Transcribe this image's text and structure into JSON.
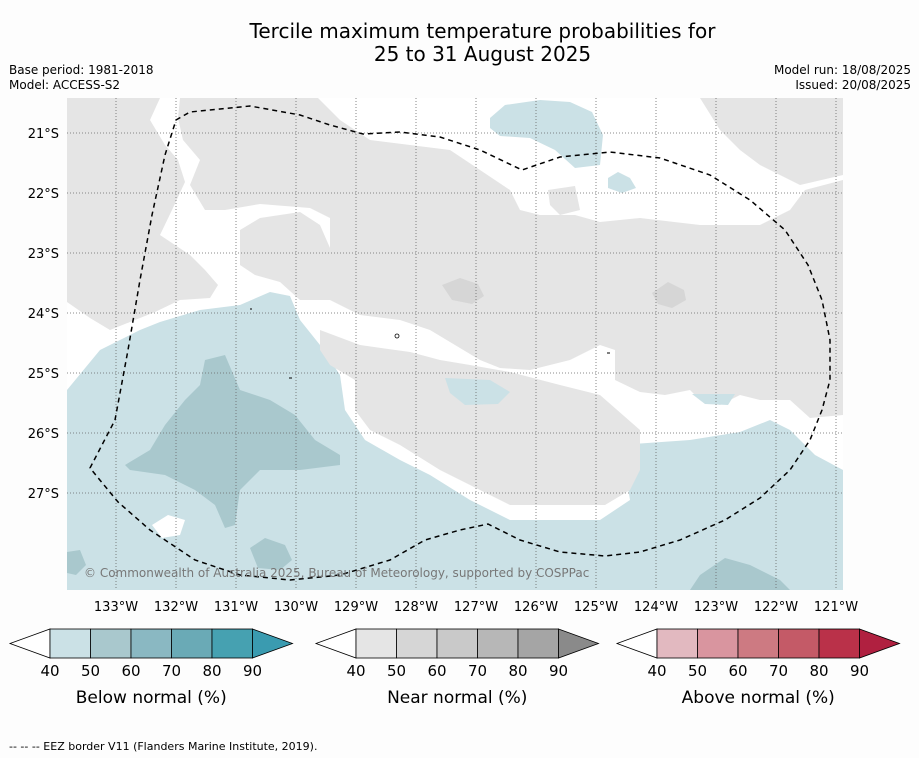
{
  "title_line1": "Tercile maximum temperature probabilities for",
  "title_line2": "25 to 31 August 2025",
  "meta": {
    "base_period": "Base period: 1981-2018",
    "model": "Model: ACCESS-S2",
    "model_run": "Model run: 18/08/2025",
    "issued": "Issued: 20/08/2025"
  },
  "copyright": "© Commonwealth of Australia 2025, Bureau of Meteorology, supported by COSPPac",
  "lat_labels": [
    "21°S",
    "22°S",
    "23°S",
    "24°S",
    "25°S",
    "26°S",
    "27°S"
  ],
  "lon_labels": [
    "133°W",
    "132°W",
    "131°W",
    "130°W",
    "129°W",
    "128°W",
    "127°W",
    "126°W",
    "125°W",
    "124°W",
    "123°W",
    "122°W",
    "121°W"
  ],
  "colorbars": [
    {
      "label": "Below normal (%)",
      "ticks": [
        "40",
        "50",
        "60",
        "70",
        "80",
        "90"
      ],
      "colors": [
        "#ffffff",
        "#cbe1e6",
        "#a9c8cd",
        "#8ab8c2",
        "#6aaab6",
        "#46a1b1",
        "#3a9bb0"
      ]
    },
    {
      "label": "Near normal (%)",
      "ticks": [
        "40",
        "50",
        "60",
        "70",
        "80",
        "90"
      ],
      "colors": [
        "#ffffff",
        "#e5e5e5",
        "#d6d6d6",
        "#c9c9c9",
        "#b7b7b7",
        "#a5a5a5",
        "#8a8a8a"
      ]
    },
    {
      "label": "Above normal (%)",
      "ticks": [
        "40",
        "50",
        "60",
        "70",
        "80",
        "90"
      ],
      "colors": [
        "#ffffff",
        "#e2b9c0",
        "#d9959f",
        "#cd7a82",
        "#c45a67",
        "#ba3149",
        "#b02040"
      ]
    }
  ],
  "footnote": "--  --  -- EEZ border V11 (Flanders Marine Institute, 2019)."
}
